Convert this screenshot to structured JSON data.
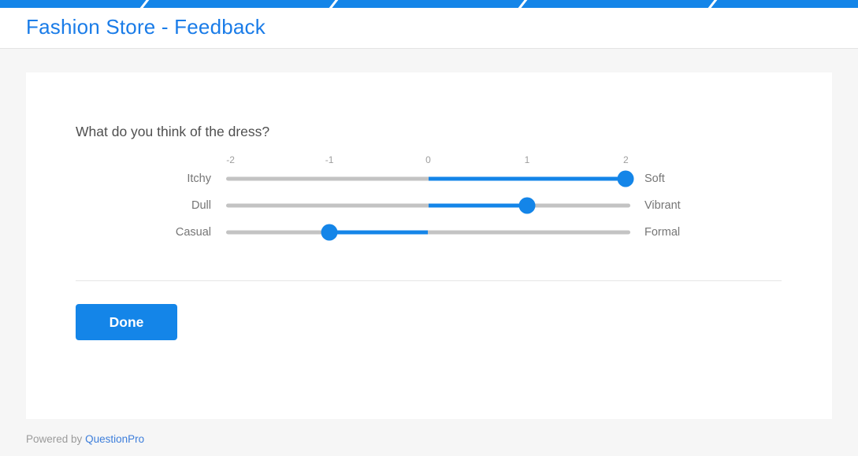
{
  "progress_bar": {
    "segments": 5,
    "filled_segments": 5
  },
  "header": {
    "title": "Fashion Store - Feedback"
  },
  "survey": {
    "question": "What do you think of the dress?",
    "scale_ticks": [
      "-2",
      "-1",
      "0",
      "1",
      "2"
    ],
    "scale_min": -2,
    "scale_max": 2,
    "sliders": [
      {
        "left_label": "Itchy",
        "right_label": "Soft",
        "value": 2
      },
      {
        "left_label": "Dull",
        "right_label": "Vibrant",
        "value": 1
      },
      {
        "left_label": "Casual",
        "right_label": "Formal",
        "value": -1
      }
    ],
    "done_label": "Done"
  },
  "footer": {
    "powered_by_label": "Powered by",
    "brand_link_label": "QuestionPro"
  },
  "colors": {
    "accent_blue": "#1485e8",
    "title_blue": "#1a7ce8",
    "link_blue": "#3d7edb",
    "track_gray": "#c3c3c3",
    "label_gray": "#757575",
    "tick_gray": "#9e9e9e",
    "question_text": "#4f4f4f",
    "page_background": "#f6f6f6",
    "card_background": "#ffffff"
  }
}
